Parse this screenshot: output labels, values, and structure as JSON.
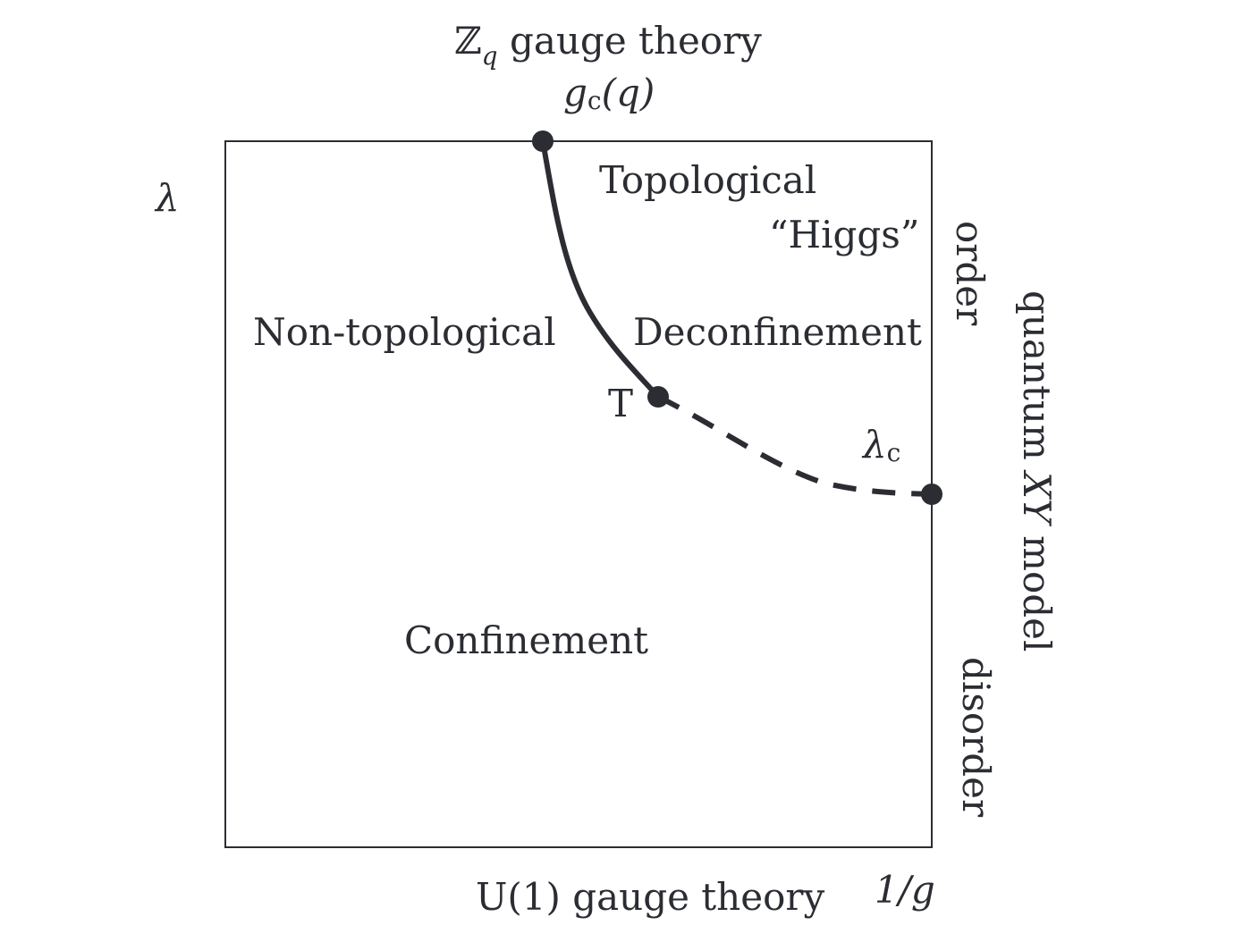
{
  "diagram": {
    "top_label": "ℤq gauge theory",
    "top_label_main": "ℤ",
    "top_label_sub": "q",
    "top_label_rest": " gauge theory",
    "critical_g": "gc(q)",
    "critical_g_g": "g",
    "critical_g_sub": "c",
    "critical_g_arg": "(q)",
    "y_axis_label": "λ",
    "x_axis_label": "1/g",
    "bottom_label": "U(1) gauge theory",
    "right_label": "quantum XY model",
    "right_label_pre": "quantum ",
    "right_label_xy": "XY",
    "right_label_post": " model",
    "right_order": "order",
    "right_disorder": "disorder",
    "triple_point": "T",
    "lambda_c": "λc",
    "lambda_c_main": "λ",
    "lambda_c_sub": "c",
    "regions": {
      "topological": "Topological",
      "higgs": "“Higgs”",
      "non_topological": "Non-topological",
      "deconfinement": "Deconfinement",
      "confinement": "Confinement"
    }
  }
}
